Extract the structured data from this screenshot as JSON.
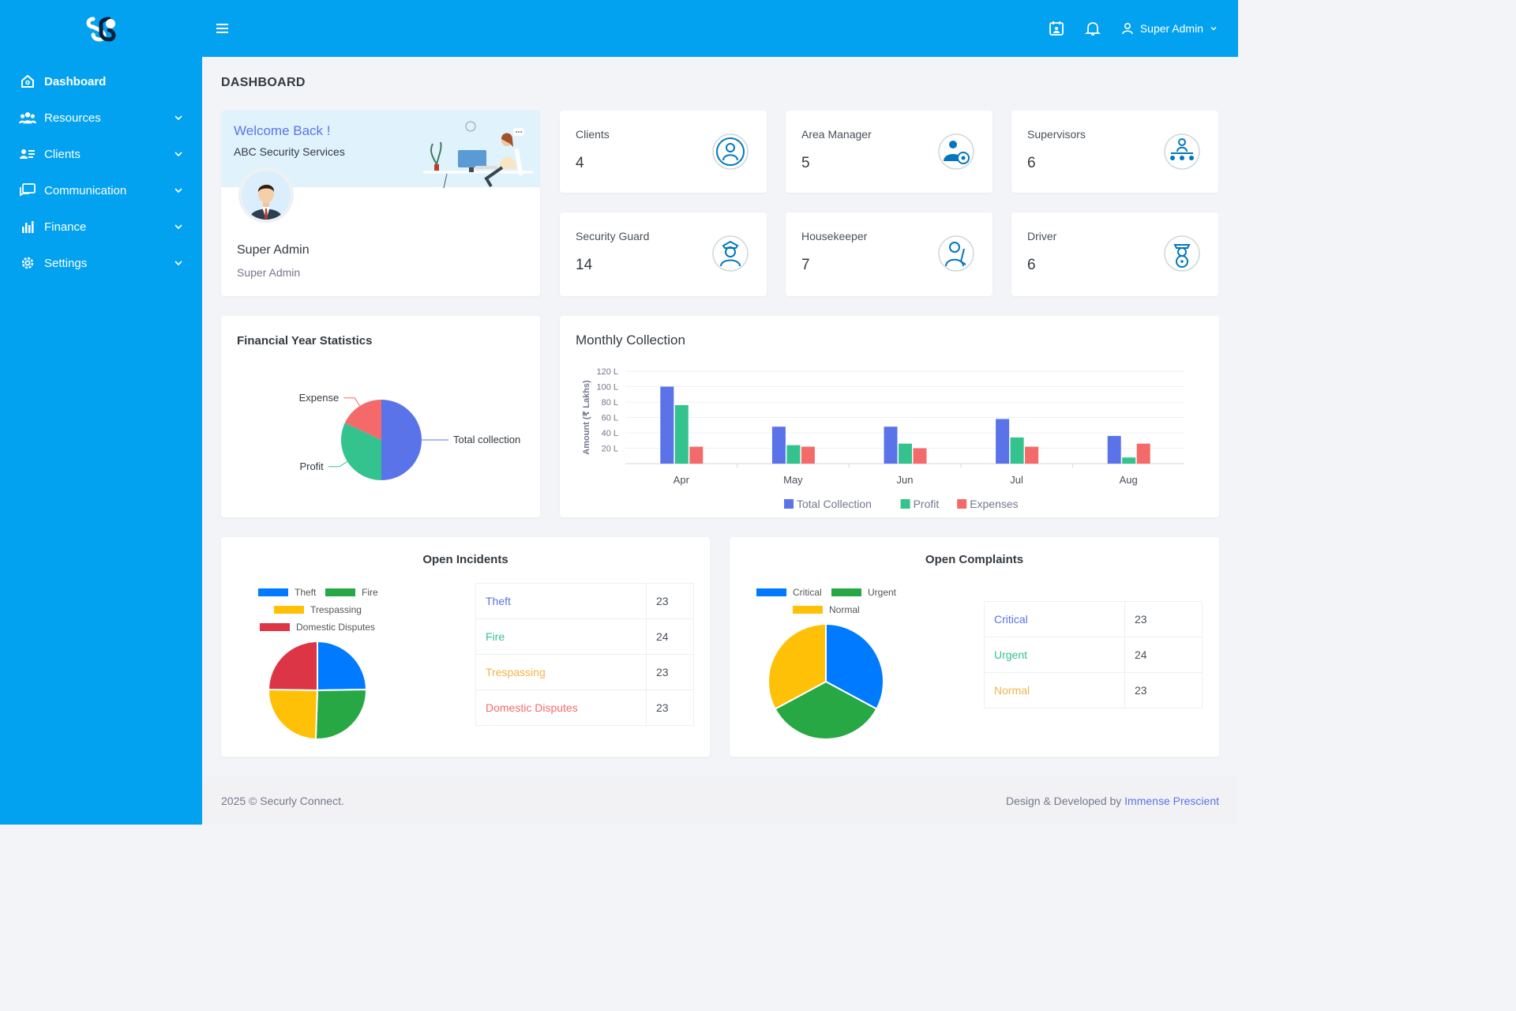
{
  "colors": {
    "primary": "#03a2f0",
    "accent": "#5b73e8",
    "green": "#34c38f",
    "red": "#f46a6a",
    "yellow": "#f1b44c"
  },
  "topbar": {
    "user_name": "Super Admin",
    "icons": [
      "menu-icon",
      "calendar-icon",
      "bell-icon",
      "user-icon",
      "chevron-down-icon"
    ]
  },
  "sidebar": {
    "items": [
      {
        "label": "Dashboard",
        "icon": "home-icon"
      },
      {
        "label": "Resources",
        "icon": "users-icon"
      },
      {
        "label": "Clients",
        "icon": "address-card-icon"
      },
      {
        "label": "Communication",
        "icon": "chat-icon"
      },
      {
        "label": "Finance",
        "icon": "bar-chart-icon"
      },
      {
        "label": "Settings",
        "icon": "gear-icon"
      }
    ]
  },
  "page": {
    "title": "DASHBOARD"
  },
  "welcome": {
    "heading": "Welcome Back !",
    "company": "ABC Security Services",
    "name": "Super Admin",
    "role": "Super Admin"
  },
  "stats": [
    {
      "label": "Clients",
      "value": "4",
      "icon": "client-icon"
    },
    {
      "label": "Area Manager",
      "value": "5",
      "icon": "area-manager-icon"
    },
    {
      "label": "Supervisors",
      "value": "6",
      "icon": "supervisor-icon"
    },
    {
      "label": "Security Guard",
      "value": "14",
      "icon": "security-guard-icon"
    },
    {
      "label": "Housekeeper",
      "value": "7",
      "icon": "housekeeper-icon"
    },
    {
      "label": "Driver",
      "value": "6",
      "icon": "driver-icon"
    }
  ],
  "financial": {
    "title": "Financial Year Statistics"
  },
  "monthly": {
    "title": "Monthly Collection"
  },
  "incidents": {
    "title": "Open Incidents",
    "rows": [
      {
        "label": "Theft",
        "value": "23"
      },
      {
        "label": "Fire",
        "value": "24"
      },
      {
        "label": "Trespassing",
        "value": "23"
      },
      {
        "label": "Domestic Disputes",
        "value": "23"
      }
    ]
  },
  "complaints": {
    "title": "Open Complaints",
    "rows": [
      {
        "label": "Critical",
        "value": "23"
      },
      {
        "label": "Urgent",
        "value": "24"
      },
      {
        "label": "Normal",
        "value": "23"
      }
    ]
  },
  "footer": {
    "copyright": "2025 © Securly Connect.",
    "credit": "Design & Developed by",
    "credit_link": "Immense Prescient"
  },
  "chart_data": [
    {
      "type": "pie",
      "labels": [
        "Total collection",
        "Profit",
        "Expense"
      ],
      "values": [
        50,
        32,
        18
      ],
      "colors": [
        "#5b73e8",
        "#34c38f",
        "#f46a6a"
      ]
    },
    {
      "type": "bar",
      "categories": [
        "Apr",
        "May",
        "Jun",
        "Jul",
        "Aug"
      ],
      "series": [
        {
          "name": "Total Collection",
          "color": "#5b73e8",
          "values": [
            100,
            48,
            48,
            58,
            36
          ]
        },
        {
          "name": "Profit",
          "color": "#34c38f",
          "values": [
            76,
            24,
            26,
            34,
            8
          ]
        },
        {
          "name": "Expenses",
          "color": "#f46a6a",
          "values": [
            22,
            22,
            20,
            22,
            26
          ]
        }
      ],
      "ylabel": "Amount (₹ Lakhs)",
      "yticks": [
        "20 L",
        "40 L",
        "60 L",
        "80 L",
        "100 L",
        "120 L"
      ],
      "ylim": [
        0,
        120
      ],
      "legend": "bottom"
    },
    {
      "type": "pie",
      "labels": [
        "Theft",
        "Fire",
        "Trespassing",
        "Domestic Disputes"
      ],
      "values": [
        23,
        24,
        23,
        23
      ],
      "colors": [
        "#007bff",
        "#28a745",
        "#ffc107",
        "#dc3545"
      ],
      "legend": "top"
    },
    {
      "type": "pie",
      "labels": [
        "Critical",
        "Urgent",
        "Normal"
      ],
      "values": [
        23,
        24,
        23
      ],
      "colors": [
        "#007bff",
        "#28a745",
        "#ffc107"
      ],
      "legend": "top"
    }
  ]
}
